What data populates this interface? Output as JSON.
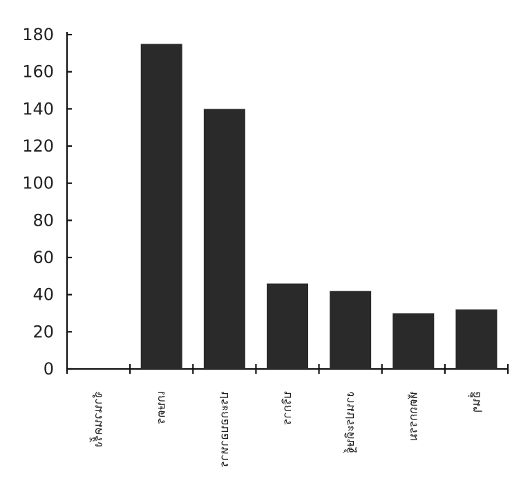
{
  "chart_data": {
    "type": "bar",
    "title": "",
    "xlabel": "",
    "ylabel": "",
    "ylim": [
      0,
      180
    ],
    "yticks": [
      0,
      20,
      40,
      60,
      80,
      100,
      120,
      140,
      160,
      180
    ],
    "categories": [
      "จำนวนครั้ง",
      "เกษตร",
      "ประกอบอาหาร",
      "บริการ",
      "งานประดิษฐ์",
      "หัตถกรรม",
      "อื่นๆ"
    ],
    "values": [
      null,
      175,
      140,
      46,
      42,
      30,
      32
    ],
    "grid": false,
    "legend": "none",
    "bar_color": "#2a2a2a",
    "label_orientation": "vertical-flipped"
  }
}
